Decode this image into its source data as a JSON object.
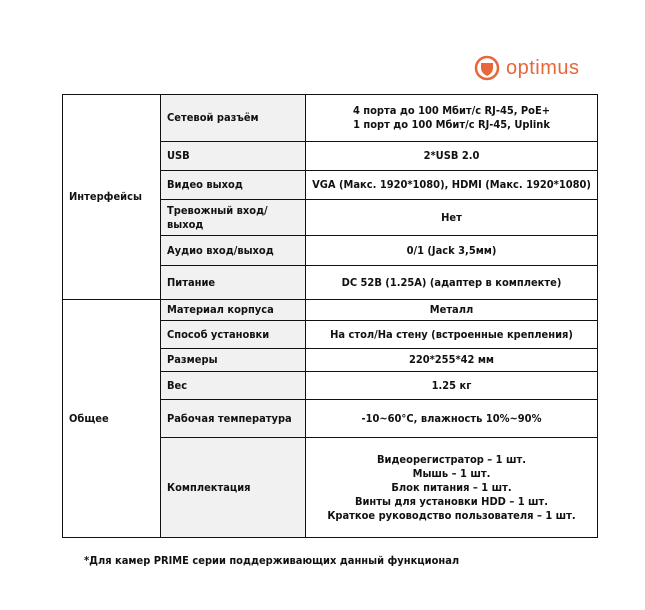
{
  "logo": {
    "text": "optimus",
    "color": "#e8663a"
  },
  "sections": [
    {
      "name": "Интерфейсы",
      "rows": [
        {
          "label": "Сетевой разъём",
          "value": [
            "4 порта до 100 Мбит/с RJ-45, PoE+",
            "1 порт до 100 Мбит/с RJ-45, Uplink"
          ]
        },
        {
          "label": "USB",
          "value": [
            "2*USB 2.0"
          ]
        },
        {
          "label": "Видео выход",
          "value": [
            "VGA (Макс. 1920*1080), HDMI (Макс. 1920*1080)"
          ]
        },
        {
          "label": "Тревожный вход/выход",
          "value": [
            "Нет"
          ]
        },
        {
          "label": "Аудио вход/выход",
          "value": [
            "0/1 (Jack 3,5мм)"
          ]
        },
        {
          "label": "Питание",
          "value": [
            "DC 52В (1.25А) (адаптер в комплекте)"
          ]
        }
      ]
    },
    {
      "name": "Общее",
      "rows": [
        {
          "label": "Материал корпуса",
          "value": [
            "Металл"
          ]
        },
        {
          "label": "Способ установки",
          "value": [
            "На стол/На стену (встроенные крепления)"
          ]
        },
        {
          "label": "Размеры",
          "value": [
            "220*255*42 мм"
          ]
        },
        {
          "label": "Вес",
          "value": [
            "1.25 кг"
          ]
        },
        {
          "label": "Рабочая температура",
          "value": [
            "-10~60°C, влажность 10%~90%"
          ]
        },
        {
          "label": "Комплектация",
          "value": [
            "Видеорегистратор – 1 шт.",
            "Мышь – 1 шт.",
            "Блок питания – 1 шт.",
            "Винты для установки HDD – 1 шт.",
            "Краткое руководство пользователя – 1 шт."
          ]
        }
      ]
    }
  ],
  "footnote": "*Для камер PRIME серии поддерживающих данный функционал"
}
